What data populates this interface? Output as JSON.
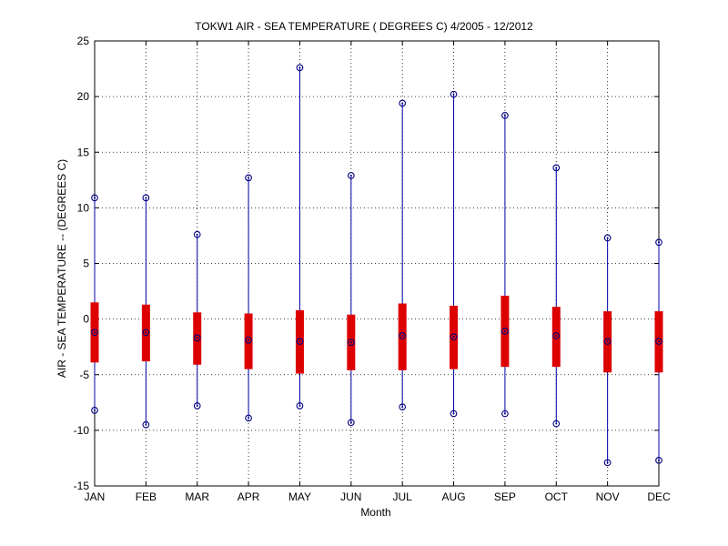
{
  "chart_data": {
    "type": "box",
    "title": "TOKW1  AIR - SEA TEMPERATURE ( DEGREES C) 4/2005 - 12/2012",
    "xlabel": "Month",
    "ylabel": "AIR - SEA TEMPERATURE -- (DEGREES C)",
    "ylim": [
      -15,
      25
    ],
    "yticks": [
      -15,
      -10,
      -5,
      0,
      5,
      10,
      15,
      20,
      25
    ],
    "grid": true,
    "categories": [
      "JAN",
      "FEB",
      "MAR",
      "APR",
      "MAY",
      "JUN",
      "JUL",
      "AUG",
      "SEP",
      "OCT",
      "NOV",
      "DEC"
    ],
    "series": [
      {
        "min": [
          -8.2,
          -9.5,
          -7.8,
          -8.9,
          -7.8,
          -9.3,
          -7.9,
          -8.5,
          -8.5,
          -9.4,
          -12.9,
          -12.7
        ],
        "q1": [
          -3.9,
          -3.8,
          -4.1,
          -4.5,
          -4.9,
          -4.6,
          -4.6,
          -4.5,
          -4.3,
          -4.3,
          -4.8,
          -4.8
        ],
        "median": [
          -1.2,
          -1.2,
          -1.7,
          -1.9,
          -2.0,
          -2.1,
          -1.5,
          -1.6,
          -1.1,
          -1.5,
          -2.0,
          -2.0
        ],
        "q3": [
          1.5,
          1.3,
          0.6,
          0.5,
          0.8,
          0.4,
          1.4,
          1.2,
          2.1,
          1.1,
          0.7,
          0.7
        ],
        "max": [
          10.9,
          10.9,
          7.6,
          12.7,
          22.6,
          12.9,
          19.4,
          20.2,
          18.3,
          13.6,
          7.3,
          6.9
        ]
      }
    ],
    "colors": {
      "box": "#dd0000",
      "whisker": "#0000aa",
      "marker": "#000080",
      "median": "#000080"
    }
  }
}
